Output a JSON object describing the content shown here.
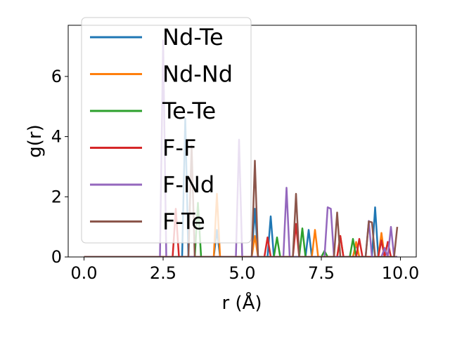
{
  "chart_data": {
    "type": "line",
    "title": "",
    "xlabel": "r (Å)",
    "ylabel": "g(r)",
    "xlim": [
      -0.5,
      10.5
    ],
    "ylim": [
      0,
      7.7
    ],
    "xticks": [
      0.0,
      2.5,
      5.0,
      7.5,
      10.0
    ],
    "xtick_labels": [
      "0.0",
      "2.5",
      "5.0",
      "7.5",
      "10.0"
    ],
    "yticks": [
      0,
      2,
      4,
      6
    ],
    "ytick_labels": [
      "0",
      "2",
      "4",
      "6"
    ],
    "grid": false,
    "legend_position": "top-left",
    "series": [
      {
        "name": "Nd-Te",
        "color": "#1f77b4",
        "x": [
          0,
          3.1,
          3.2,
          3.3,
          3.4,
          4.1,
          4.2,
          4.3,
          4.6,
          4.8,
          5.3,
          5.4,
          5.5,
          5.8,
          5.9,
          6.0,
          7.0,
          7.1,
          7.2,
          8.5,
          8.6,
          8.7,
          8.9,
          9.0,
          9.1,
          9.2,
          9.3,
          9.8,
          9.9
        ],
        "y": [
          0,
          0,
          4.6,
          0,
          0,
          0,
          0.9,
          0,
          0,
          0,
          0,
          1.6,
          0,
          0,
          1.35,
          0,
          0,
          0.9,
          0,
          0,
          0.45,
          0,
          0,
          0,
          0,
          1.65,
          0,
          0,
          0
        ]
      },
      {
        "name": "Nd-Nd",
        "color": "#ff7f0e",
        "x": [
          0,
          4.1,
          4.2,
          4.3,
          5.3,
          5.4,
          5.5,
          7.2,
          7.3,
          7.4,
          8.0,
          8.1,
          8.2,
          8.5,
          8.6,
          8.7,
          9.3,
          9.4,
          9.5,
          9.9
        ],
        "y": [
          0,
          0,
          2.1,
          0,
          0,
          0.7,
          0,
          0,
          0.9,
          0,
          0,
          0.7,
          0,
          0,
          0.5,
          0,
          0,
          0.8,
          0,
          0
        ]
      },
      {
        "name": "Te-Te",
        "color": "#2ca02c",
        "x": [
          0,
          3.5,
          3.6,
          3.7,
          6.0,
          6.1,
          6.2,
          6.8,
          6.9,
          7.0,
          7.5,
          7.6,
          7.7,
          8.4,
          8.5,
          8.6,
          9.8,
          9.9
        ],
        "y": [
          0,
          0,
          1.8,
          0,
          0,
          0.65,
          0,
          0,
          0.95,
          0,
          0,
          0.2,
          0,
          0,
          0.6,
          0,
          0,
          0
        ]
      },
      {
        "name": "F-F",
        "color": "#d62728",
        "x": [
          0,
          2.8,
          2.9,
          3.0,
          5.7,
          5.8,
          5.9,
          6.6,
          6.7,
          6.8,
          8.0,
          8.1,
          8.2,
          8.6,
          8.7,
          8.8,
          9.3,
          9.4,
          9.5,
          9.6,
          9.7,
          9.8,
          9.9
        ],
        "y": [
          0,
          0,
          1.6,
          0,
          0,
          0.65,
          0,
          0,
          1.1,
          0,
          0,
          0.7,
          0,
          0,
          0.6,
          0,
          0,
          0.55,
          0,
          0.5,
          0,
          0,
          0
        ]
      },
      {
        "name": "F-Nd",
        "color": "#9467bd",
        "x": [
          0,
          2.4,
          2.5,
          2.6,
          4.8,
          4.9,
          5.0,
          6.3,
          6.4,
          6.5,
          7.6,
          7.7,
          7.8,
          7.9,
          8.9,
          9.0,
          9.1,
          9.4,
          9.5,
          9.6,
          9.7,
          9.8,
          9.9
        ],
        "y": [
          0,
          0,
          7.2,
          0,
          0,
          3.9,
          0,
          0,
          2.3,
          0,
          0,
          1.65,
          1.6,
          0,
          0,
          1.2,
          0,
          0,
          0.3,
          0,
          1.0,
          0,
          0
        ]
      },
      {
        "name": "F-Te",
        "color": "#8c564b",
        "x": [
          0,
          3.3,
          3.4,
          3.5,
          5.3,
          5.4,
          5.5,
          6.6,
          6.7,
          6.8,
          7.9,
          8.0,
          8.1,
          8.9,
          9.0,
          9.1,
          9.2,
          9.8,
          9.9
        ],
        "y": [
          0,
          0,
          3.7,
          0,
          0,
          3.2,
          0,
          0,
          2.1,
          0,
          0,
          1.48,
          0,
          0,
          1.18,
          1.15,
          0,
          0,
          1.0
        ]
      }
    ]
  }
}
